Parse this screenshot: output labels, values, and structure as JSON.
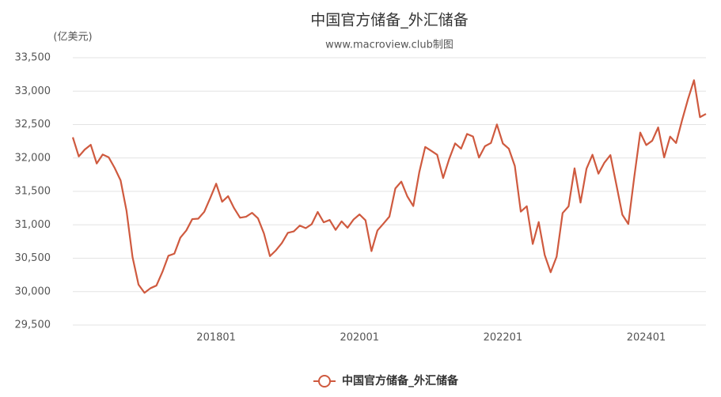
{
  "chart_data": {
    "type": "line",
    "title": "中国官方储备_外汇储备",
    "subtitle": "www.macroview.club制图",
    "y_unit": "(亿美元)",
    "categories": [
      null,
      null,
      null,
      null,
      null,
      null,
      null,
      null,
      null,
      null,
      null,
      null,
      null,
      null,
      null,
      null,
      null,
      null,
      null,
      null,
      null,
      null,
      null,
      null,
      "201801",
      null,
      null,
      null,
      null,
      null,
      null,
      null,
      null,
      null,
      null,
      null,
      null,
      null,
      null,
      null,
      null,
      null,
      null,
      null,
      null,
      null,
      null,
      null,
      "202001",
      null,
      null,
      null,
      null,
      null,
      null,
      null,
      null,
      null,
      null,
      null,
      null,
      null,
      null,
      null,
      null,
      null,
      null,
      null,
      null,
      null,
      null,
      null,
      "202201",
      null,
      null,
      null,
      null,
      null,
      null,
      null,
      null,
      null,
      null,
      null,
      null,
      null,
      null,
      null,
      null,
      null,
      null,
      null,
      null,
      null,
      null,
      null,
      "202401",
      null,
      null,
      null,
      null,
      null,
      null,
      null,
      null,
      null,
      null
    ],
    "series": [
      {
        "name": "中国官方储备_外汇储备",
        "color": "#cf5a3f",
        "values": [
          32309,
          32023,
          32126,
          32197,
          31917,
          32052,
          32011,
          31852,
          31664,
          31206,
          30516,
          30105,
          29982,
          30051,
          30091,
          30295,
          30536,
          30568,
          30807,
          30915,
          31085,
          31092,
          31193,
          31399,
          31615,
          31345,
          31428,
          31249,
          31106,
          31121,
          31179,
          31097,
          30870,
          30531,
          30617,
          30727,
          30879,
          30902,
          30988,
          30950,
          31010,
          31192,
          31037,
          31072,
          30924,
          31052,
          30956,
          31079,
          31155,
          31067,
          30606,
          30915,
          31017,
          31123,
          31544,
          31646,
          31426,
          31280,
          31785,
          32165,
          32107,
          32048,
          31700,
          31982,
          32218,
          32140,
          32359,
          32321,
          32006,
          32176,
          32224,
          32502,
          32216,
          32138,
          31880,
          31197,
          31278,
          30713,
          31041,
          30549,
          30290,
          30524,
          31175,
          31277,
          31845,
          31332,
          31839,
          32048,
          31765,
          31930,
          32043,
          31601,
          31151,
          31012,
          31718,
          32380,
          32193,
          32258,
          32457,
          32008,
          32320,
          32224,
          32564,
          32882,
          33164,
          32611,
          32659
        ]
      }
    ],
    "ylim": [
      29500,
      33500
    ],
    "yticks": [
      {
        "value": 29500,
        "label": "29,500"
      },
      {
        "value": 30000,
        "label": "30,000"
      },
      {
        "value": 30500,
        "label": "30,500"
      },
      {
        "value": 31000,
        "label": "31,000"
      },
      {
        "value": 31500,
        "label": "31,500"
      },
      {
        "value": 32000,
        "label": "32,000"
      },
      {
        "value": 32500,
        "label": "32,500"
      },
      {
        "value": 33000,
        "label": "33,000"
      },
      {
        "value": 33500,
        "label": "33,500"
      }
    ],
    "grid": true,
    "legend": "bottom"
  }
}
